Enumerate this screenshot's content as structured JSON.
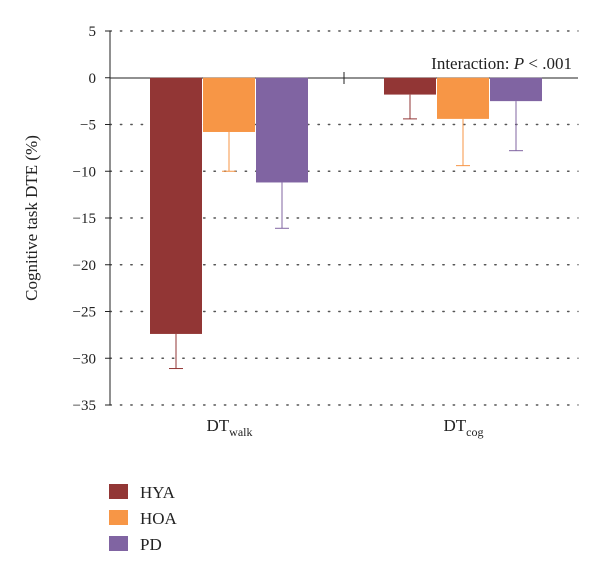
{
  "chart_data": {
    "type": "bar",
    "title": "",
    "xlabel": "",
    "ylabel": "Cognitive task DTE (%)",
    "ylim": [
      -35,
      5
    ],
    "yticks": [
      5,
      0,
      -5,
      -10,
      -15,
      -20,
      -25,
      -30,
      -35
    ],
    "ytick_labels": [
      "5",
      "0",
      "−5",
      "−10",
      "−15",
      "−20",
      "−25",
      "−30",
      "−35"
    ],
    "grid": "horizontal dotted",
    "legend_position": "bottom-left",
    "categories": [
      {
        "base": "DT",
        "sub": "walk"
      },
      {
        "base": "DT",
        "sub": "cog"
      }
    ],
    "series": [
      {
        "name": "HYA",
        "color": "#923635",
        "values": [
          -27.4,
          -1.8
        ],
        "error": [
          3.7,
          2.6
        ]
      },
      {
        "name": "HOA",
        "color": "#F79646",
        "values": [
          -5.8,
          -4.4
        ],
        "error": [
          4.2,
          5.0
        ]
      },
      {
        "name": "PD",
        "color": "#8064A2",
        "values": [
          -11.2,
          -2.5
        ],
        "error": [
          4.9,
          5.3
        ]
      }
    ],
    "annotation": {
      "prefix": "Interaction: ",
      "italic": "P",
      "suffix": " < .001"
    }
  }
}
